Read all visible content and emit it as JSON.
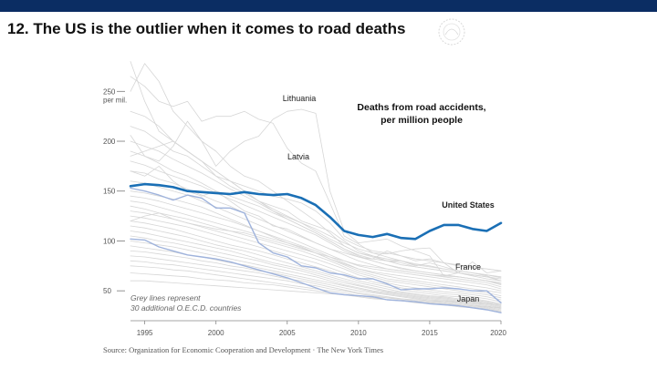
{
  "slide": {
    "title": "12. The US is the outlier when it comes to road deaths",
    "source": "Source: Organization for Economic Cooperation and Development  ·  The New York Times"
  },
  "colors": {
    "header_bar": "#0b2d63",
    "us_line": "#1a6fb5",
    "highlight_lines": "#9fb3dc",
    "grey_lines": "#d6d6d6"
  },
  "chart_data": {
    "type": "line",
    "title": "Deaths from road accidents, per million people",
    "title_lines": [
      "Deaths from road accidents,",
      "per million people"
    ],
    "x": [
      1994,
      1995,
      1996,
      1997,
      1998,
      1999,
      2000,
      2001,
      2002,
      2003,
      2004,
      2005,
      2006,
      2007,
      2008,
      2009,
      2010,
      2011,
      2012,
      2013,
      2014,
      2015,
      2016,
      2017,
      2018,
      2019,
      2020
    ],
    "xticks": [
      1995,
      2000,
      2005,
      2010,
      2015,
      2020
    ],
    "xtick_labels": [
      "1995",
      "2000",
      "2005",
      "2010",
      "2015",
      "2020"
    ],
    "ylim": [
      20,
      285
    ],
    "yticks": [
      50,
      100,
      150,
      200,
      250
    ],
    "ytick_labels": [
      "50",
      "100",
      "150",
      "200",
      "250"
    ],
    "y_unit_label": "per mil.",
    "series": [
      {
        "name": "United States",
        "style": "main",
        "values": [
          155,
          157,
          156,
          154,
          150,
          149,
          148,
          147,
          149,
          147,
          146,
          147,
          143,
          136,
          124,
          110,
          106,
          104,
          107,
          103,
          102,
          110,
          116,
          116,
          112,
          110,
          118
        ]
      },
      {
        "name": "France",
        "style": "highlight",
        "values": [
          153,
          150,
          146,
          141,
          146,
          143,
          133,
          133,
          128,
          98,
          88,
          84,
          75,
          73,
          68,
          66,
          62,
          62,
          57,
          51,
          52,
          52,
          53,
          52,
          50,
          50,
          38
        ]
      },
      {
        "name": "Japan",
        "style": "highlight",
        "values": [
          102,
          101,
          94,
          90,
          86,
          84,
          82,
          79,
          75,
          71,
          67,
          63,
          58,
          53,
          48,
          46,
          45,
          44,
          41,
          40,
          39,
          37,
          36,
          35,
          33,
          31,
          28
        ]
      },
      {
        "name": "Lithuania",
        "style": "grey",
        "values": [
          206,
          185,
          180,
          195,
          220,
          200,
          175,
          190,
          200,
          205,
          222,
          230,
          232,
          228,
          150,
          110,
          98,
          100,
          102,
          95,
          90,
          85,
          65,
          68,
          65,
          62,
          60
        ]
      },
      {
        "name": "Latvia",
        "style": "grey",
        "values": [
          265,
          255,
          240,
          235,
          240,
          220,
          225,
          225,
          230,
          222,
          218,
          193,
          178,
          170,
          138,
          105,
          97,
          88,
          87,
          90,
          92,
          93,
          78,
          68,
          79,
          68,
          70
        ]
      },
      {
        "name": "",
        "style": "grey",
        "values": [
          280,
          240,
          210,
          200,
          190,
          180,
          170,
          160,
          150,
          140,
          135,
          130,
          120,
          115,
          110,
          100,
          90,
          85,
          80,
          80,
          75,
          78,
          74,
          70,
          68,
          65,
          60
        ]
      },
      {
        "name": "",
        "style": "grey",
        "values": [
          250,
          278,
          260,
          230,
          215,
          200,
          190,
          175,
          165,
          160,
          150,
          140,
          130,
          120,
          108,
          95,
          88,
          85,
          82,
          80,
          76,
          74,
          72,
          70,
          68,
          66,
          64
        ]
      },
      {
        "name": "",
        "style": "grey",
        "values": [
          230,
          225,
          215,
          200,
          190,
          180,
          170,
          160,
          150,
          140,
          130,
          122,
          115,
          108,
          100,
          92,
          86,
          82,
          80,
          78,
          74,
          72,
          70,
          68,
          66,
          64,
          62
        ]
      },
      {
        "name": "",
        "style": "grey",
        "values": [
          215,
          210,
          200,
          190,
          185,
          175,
          165,
          155,
          148,
          140,
          132,
          125,
          118,
          110,
          102,
          95,
          88,
          84,
          80,
          76,
          74,
          72,
          70,
          68,
          66,
          64,
          60
        ]
      },
      {
        "name": "",
        "style": "grey",
        "values": [
          200,
          195,
          190,
          182,
          175,
          168,
          160,
          152,
          145,
          138,
          130,
          124,
          118,
          112,
          105,
          98,
          92,
          88,
          84,
          80,
          77,
          75,
          72,
          70,
          68,
          66,
          63
        ]
      },
      {
        "name": "",
        "style": "grey",
        "values": [
          190,
          185,
          178,
          170,
          165,
          158,
          150,
          145,
          140,
          135,
          128,
          122,
          115,
          108,
          100,
          92,
          85,
          80,
          76,
          73,
          70,
          68,
          66,
          64,
          62,
          60,
          57
        ]
      },
      {
        "name": "",
        "style": "grey",
        "values": [
          180,
          176,
          170,
          165,
          160,
          155,
          148,
          142,
          136,
          130,
          124,
          118,
          112,
          106,
          98,
          90,
          84,
          80,
          76,
          72,
          70,
          68,
          66,
          64,
          62,
          60,
          56
        ]
      },
      {
        "name": "",
        "style": "grey",
        "values": [
          170,
          168,
          162,
          158,
          152,
          146,
          140,
          135,
          128,
          122,
          116,
          110,
          104,
          98,
          92,
          86,
          80,
          76,
          72,
          70,
          68,
          66,
          64,
          62,
          60,
          58,
          54
        ]
      },
      {
        "name": "",
        "style": "grey",
        "values": [
          160,
          158,
          154,
          150,
          146,
          140,
          134,
          128,
          122,
          116,
          110,
          104,
          98,
          92,
          86,
          80,
          75,
          72,
          70,
          68,
          66,
          64,
          62,
          60,
          58,
          56,
          52
        ]
      },
      {
        "name": "",
        "style": "grey",
        "values": [
          150,
          148,
          145,
          142,
          138,
          134,
          128,
          122,
          116,
          110,
          104,
          98,
          93,
          88,
          82,
          77,
          72,
          69,
          67,
          65,
          63,
          61,
          59,
          57,
          55,
          53,
          50
        ]
      },
      {
        "name": "",
        "style": "grey",
        "values": [
          145,
          143,
          140,
          136,
          132,
          128,
          124,
          120,
          115,
          110,
          105,
          100,
          95,
          90,
          84,
          78,
          72,
          68,
          65,
          62,
          60,
          58,
          56,
          54,
          52,
          50,
          48
        ]
      },
      {
        "name": "",
        "style": "grey",
        "values": [
          140,
          138,
          134,
          130,
          126,
          122,
          118,
          114,
          110,
          106,
          102,
          98,
          94,
          88,
          82,
          76,
          70,
          66,
          62,
          60,
          58,
          56,
          54,
          52,
          50,
          48,
          45
        ]
      },
      {
        "name": "",
        "style": "grey",
        "values": [
          135,
          132,
          128,
          125,
          122,
          118,
          114,
          110,
          106,
          102,
          98,
          94,
          90,
          85,
          80,
          74,
          68,
          64,
          60,
          58,
          56,
          54,
          52,
          50,
          48,
          46,
          43
        ]
      },
      {
        "name": "",
        "style": "grey",
        "values": [
          130,
          128,
          125,
          122,
          118,
          114,
          110,
          106,
          102,
          98,
          94,
          90,
          86,
          82,
          77,
          72,
          66,
          62,
          58,
          55,
          53,
          51,
          49,
          48,
          46,
          44,
          41
        ]
      },
      {
        "name": "",
        "style": "grey",
        "values": [
          125,
          123,
          120,
          117,
          114,
          110,
          106,
          102,
          98,
          94,
          90,
          86,
          82,
          78,
          73,
          68,
          63,
          59,
          56,
          53,
          51,
          49,
          47,
          46,
          44,
          42,
          39
        ]
      },
      {
        "name": "",
        "style": "grey",
        "values": [
          120,
          118,
          115,
          112,
          108,
          104,
          100,
          96,
          93,
          90,
          86,
          82,
          78,
          74,
          70,
          65,
          60,
          57,
          54,
          51,
          49,
          47,
          45,
          44,
          42,
          40,
          37
        ]
      },
      {
        "name": "",
        "style": "grey",
        "values": [
          115,
          113,
          110,
          107,
          104,
          100,
          96,
          93,
          90,
          86,
          82,
          78,
          74,
          70,
          66,
          62,
          58,
          55,
          52,
          49,
          47,
          45,
          44,
          42,
          41,
          39,
          36
        ]
      },
      {
        "name": "",
        "style": "grey",
        "values": [
          110,
          108,
          105,
          102,
          99,
          96,
          93,
          90,
          86,
          82,
          78,
          75,
          72,
          68,
          64,
          60,
          56,
          53,
          50,
          48,
          46,
          44,
          43,
          41,
          40,
          38,
          35
        ]
      },
      {
        "name": "",
        "style": "grey",
        "values": [
          105,
          103,
          100,
          98,
          95,
          92,
          89,
          86,
          83,
          80,
          76,
          73,
          70,
          66,
          62,
          58,
          55,
          52,
          49,
          47,
          45,
          43,
          42,
          40,
          39,
          37,
          34
        ]
      },
      {
        "name": "",
        "style": "grey",
        "values": [
          100,
          98,
          96,
          94,
          91,
          88,
          85,
          82,
          79,
          76,
          73,
          70,
          67,
          64,
          60,
          56,
          53,
          50,
          48,
          46,
          44,
          42,
          41,
          39,
          38,
          36,
          33
        ]
      },
      {
        "name": "",
        "style": "grey",
        "values": [
          95,
          93,
          91,
          89,
          86,
          84,
          81,
          78,
          76,
          73,
          70,
          67,
          64,
          61,
          58,
          55,
          52,
          49,
          47,
          45,
          43,
          41,
          40,
          38,
          37,
          35,
          32
        ]
      },
      {
        "name": "",
        "style": "grey",
        "values": [
          90,
          89,
          87,
          85,
          83,
          80,
          78,
          75,
          73,
          70,
          68,
          65,
          62,
          59,
          56,
          53,
          50,
          48,
          46,
          44,
          42,
          40,
          39,
          37,
          36,
          34,
          31
        ]
      },
      {
        "name": "",
        "style": "grey",
        "values": [
          85,
          84,
          82,
          80,
          78,
          76,
          74,
          72,
          70,
          68,
          65,
          62,
          60,
          57,
          54,
          51,
          48,
          46,
          44,
          42,
          40,
          39,
          38,
          36,
          35,
          33,
          30
        ]
      },
      {
        "name": "",
        "style": "grey",
        "values": [
          80,
          79,
          77,
          76,
          74,
          72,
          70,
          68,
          66,
          64,
          62,
          60,
          57,
          55,
          52,
          50,
          47,
          45,
          43,
          41,
          39,
          38,
          37,
          35,
          34,
          32,
          29
        ]
      },
      {
        "name": "",
        "style": "grey",
        "values": [
          75,
          74,
          73,
          71,
          70,
          68,
          66,
          64,
          62,
          60,
          58,
          56,
          54,
          52,
          50,
          48,
          45,
          43,
          41,
          40,
          38,
          37,
          36,
          34,
          33,
          31,
          28
        ]
      },
      {
        "name": "",
        "style": "grey",
        "values": [
          68,
          67,
          66,
          65,
          64,
          62,
          61,
          60,
          58,
          57,
          56,
          54,
          52,
          50,
          48,
          46,
          44,
          42,
          41,
          40,
          39,
          38,
          37,
          36,
          35,
          34,
          33
        ]
      },
      {
        "name": "",
        "style": "grey",
        "values": [
          60,
          60,
          59,
          58,
          57,
          56,
          55,
          54,
          53,
          52,
          51,
          50,
          49,
          48,
          47,
          46,
          45,
          44,
          43,
          42,
          41,
          40,
          40,
          39,
          38,
          37,
          36
        ]
      },
      {
        "name": "",
        "style": "grey",
        "values": [
          170,
          165,
          175,
          160,
          150,
          145,
          150,
          140,
          130,
          125,
          115,
          112,
          105,
          98,
          92,
          88,
          84,
          82,
          90,
          85,
          80,
          82,
          78,
          75,
          73,
          72,
          70
        ]
      },
      {
        "name": "",
        "style": "grey",
        "values": [
          185,
          190,
          195,
          200,
          190,
          180,
          165,
          160,
          155,
          150,
          145,
          142,
          138,
          130,
          118,
          102,
          95,
          90,
          88,
          85,
          82,
          80,
          78,
          76,
          74,
          72,
          70
        ]
      },
      {
        "name": "",
        "style": "grey",
        "values": [
          120,
          125,
          128,
          122,
          118,
          115,
          112,
          110,
          108,
          104,
          100,
          96,
          92,
          88,
          84,
          80,
          76,
          74,
          72,
          70,
          68,
          66,
          65,
          64,
          62,
          60,
          58
        ]
      }
    ],
    "annotations": {
      "lithuania": "Lithuania",
      "latvia": "Latvia",
      "us": "United States",
      "france": "France",
      "japan": "Japan",
      "note_line1": "Grey lines represent",
      "note_line2": "30 additional O.E.C.D. countries"
    }
  }
}
